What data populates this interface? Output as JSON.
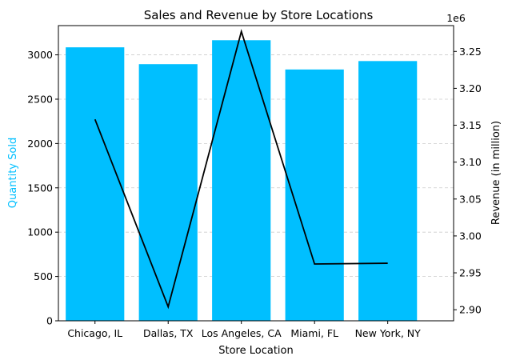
{
  "chart_data": {
    "type": "bar",
    "title": "Sales and Revenue by Store Locations",
    "xlabel": "Store Location",
    "ylabel": "Quantity Sold",
    "y2label": "Revenue (in million)",
    "y2_offset_text": "1e6",
    "categories": [
      "Chicago, IL",
      "Dallas, TX",
      "Los Angeles, CA",
      "Miami, FL",
      "New York, NY"
    ],
    "series": [
      {
        "name": "Quantity Sold",
        "type": "bar",
        "axis": "left",
        "color": "#00BFFF",
        "values": [
          3085,
          2895,
          3165,
          2835,
          2930
        ]
      },
      {
        "name": "Revenue",
        "type": "line",
        "axis": "right",
        "color": "#000000",
        "values": [
          3158000,
          2904000,
          3277000,
          2962000,
          2963000
        ]
      }
    ],
    "ylim": [
      0,
      3330
    ],
    "y_ticks": [
      0,
      500,
      1000,
      1500,
      2000,
      2500,
      3000
    ],
    "y_tick_labels": [
      "0",
      "500",
      "1000",
      "1500",
      "2000",
      "2500",
      "3000"
    ],
    "y2lim": [
      2885000,
      3285000
    ],
    "y2_ticks": [
      2900000,
      2950000,
      3000000,
      3050000,
      3100000,
      3150000,
      3200000,
      3250000
    ],
    "y2_tick_labels": [
      "2.90",
      "2.95",
      "3.00",
      "3.05",
      "3.10",
      "3.15",
      "3.20",
      "3.25"
    ],
    "grid": {
      "y": true,
      "style": "dashed",
      "color": "#cccccc"
    },
    "colors": {
      "left_axis_label": "#00BFFF",
      "right_axis_label": "#000000"
    }
  }
}
